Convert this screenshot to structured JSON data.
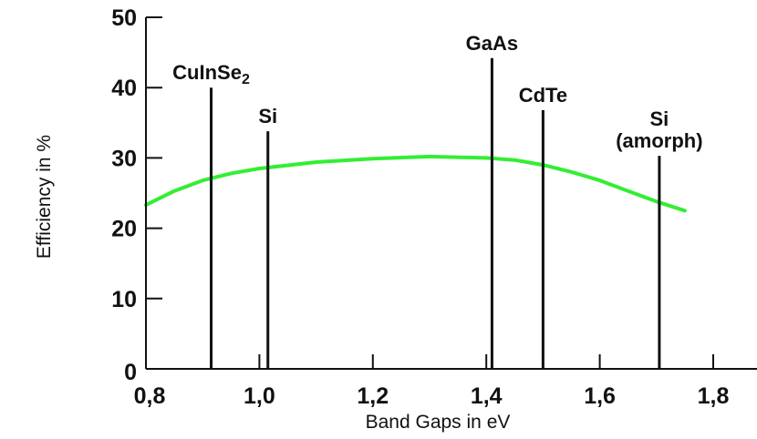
{
  "chart_data": {
    "type": "line",
    "title": "",
    "xlabel": "Band Gaps in eV",
    "ylabel": "Efficiency in %",
    "xlim": [
      0.8,
      1.9
    ],
    "ylim": [
      0,
      50
    ],
    "x_ticks": [
      "0,8",
      "1,0",
      "1,2",
      "1,4",
      "1,6",
      "1,8"
    ],
    "x_tick_values": [
      0.8,
      1.0,
      1.2,
      1.4,
      1.6,
      1.8
    ],
    "y_ticks": [
      "0",
      "10",
      "20",
      "30",
      "40",
      "50"
    ],
    "y_tick_values": [
      0,
      10,
      20,
      30,
      40,
      50
    ],
    "grid": false,
    "legend": "none",
    "series": [
      {
        "color": "#33ee33",
        "x": [
          0.8,
          0.85,
          0.9,
          0.95,
          1.0,
          1.1,
          1.2,
          1.3,
          1.4,
          1.45,
          1.5,
          1.55,
          1.6,
          1.65,
          1.7,
          1.75
        ],
        "y": [
          23.3,
          25.3,
          26.8,
          27.8,
          28.5,
          29.4,
          29.9,
          30.2,
          30.0,
          29.7,
          29.0,
          28.0,
          26.8,
          25.3,
          23.8,
          22.5
        ]
      }
    ],
    "materials": [
      {
        "label": "CuInSe",
        "subscript": "2",
        "x": 0.915,
        "efficiency": 40.0
      },
      {
        "label": "Si",
        "subscript": "",
        "x": 1.015,
        "efficiency": 33.8
      },
      {
        "label": "GaAs",
        "subscript": "",
        "x": 1.41,
        "efficiency": 44.2
      },
      {
        "label": "CdTe",
        "subscript": "",
        "x": 1.5,
        "efficiency": 36.8
      },
      {
        "label": "Si\n(amorph)",
        "subscript": "",
        "x": 1.705,
        "efficiency": 30.3
      }
    ]
  },
  "colors": {
    "curve": "#33ee33",
    "axes": "#111111",
    "background": "#ffffff"
  }
}
